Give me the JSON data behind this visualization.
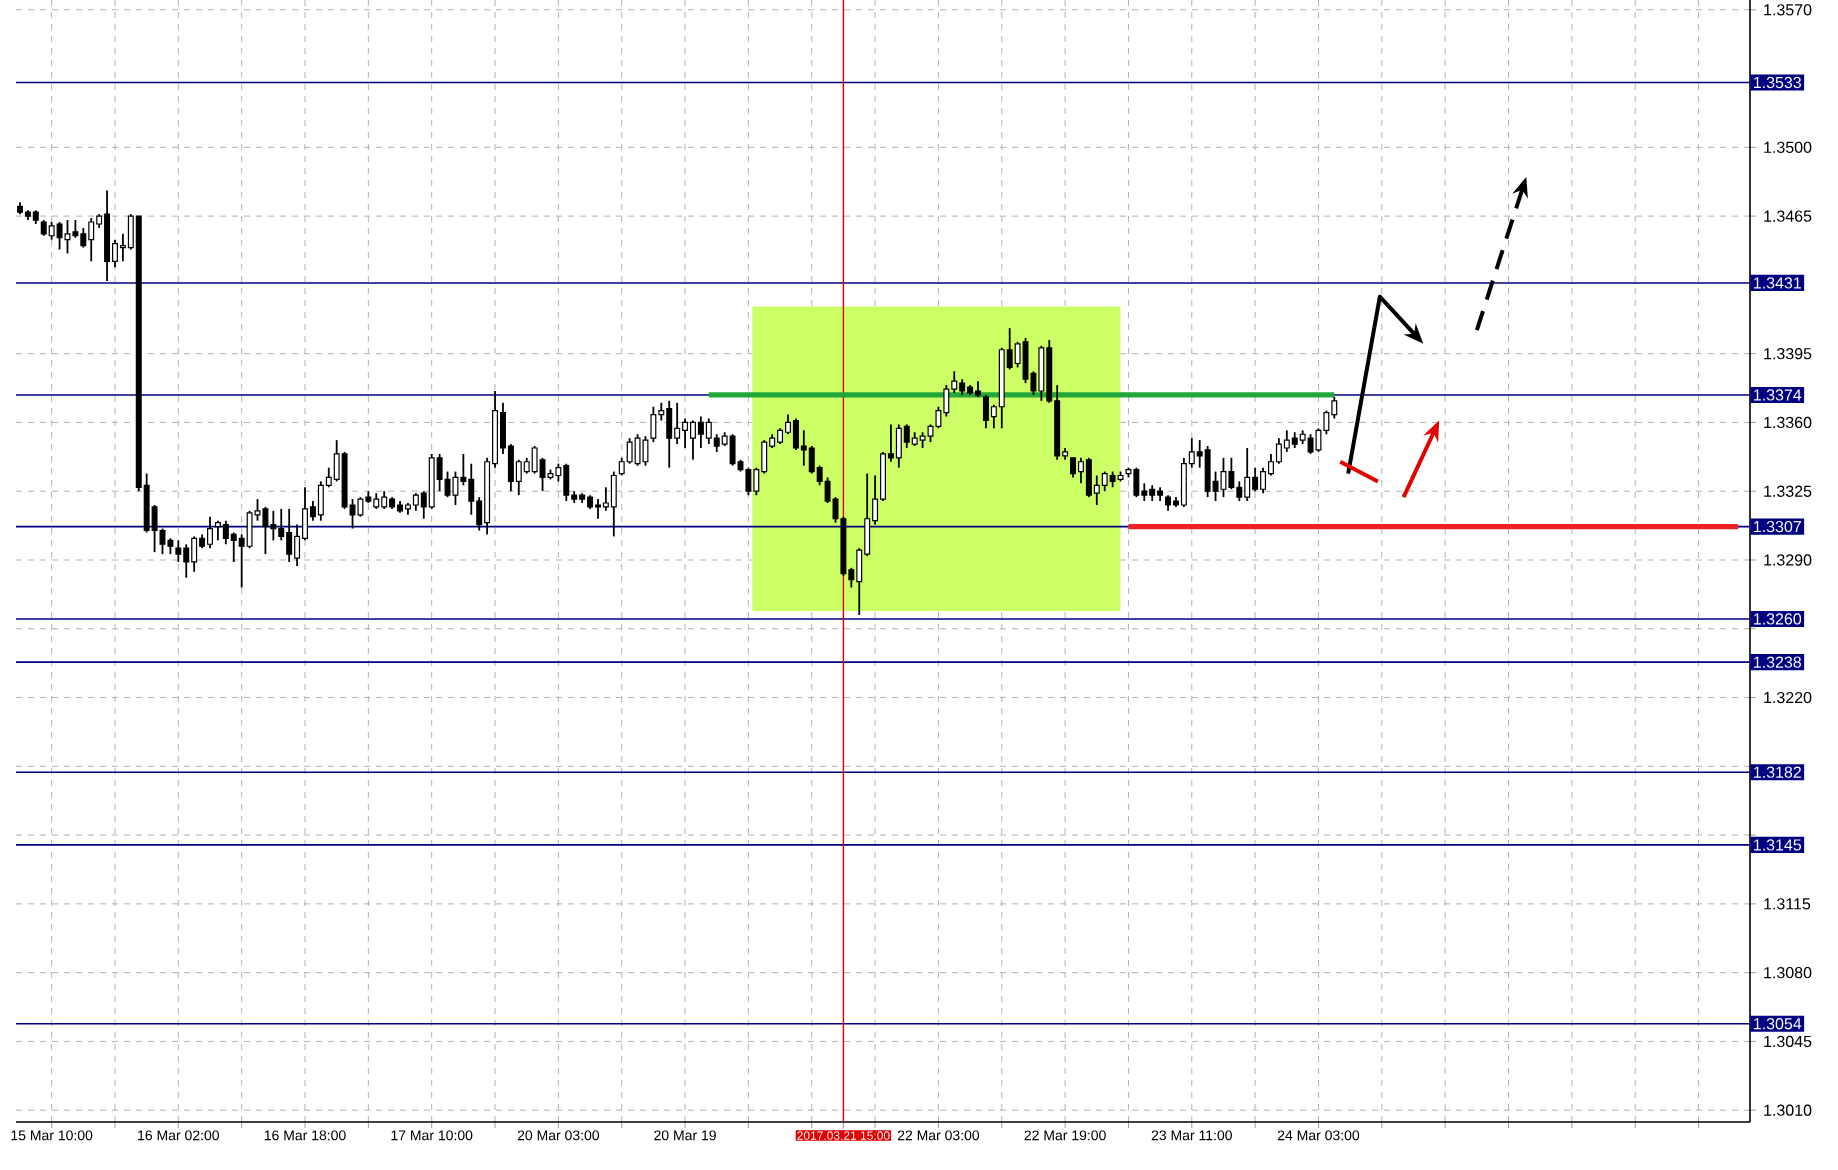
{
  "chart_data": {
    "type": "candlestick",
    "categories": [
      null,
      null,
      null,
      null,
      "15 Mar 10:00",
      null,
      null,
      null,
      null,
      null,
      null,
      null,
      null,
      null,
      null,
      null,
      null,
      null,
      null,
      null,
      "16 Mar 02:00",
      null,
      null,
      null,
      null,
      null,
      null,
      null,
      null,
      null,
      null,
      null,
      null,
      null,
      null,
      null,
      "16 Mar 18:00",
      null,
      null,
      null,
      null,
      null,
      null,
      null,
      null,
      null,
      null,
      null,
      null,
      null,
      null,
      null,
      "17 Mar 10:00",
      null,
      null,
      null,
      null,
      null,
      null,
      null,
      null,
      null,
      null,
      null,
      null,
      null,
      null,
      null,
      "20 Mar 03:00",
      null,
      null,
      null,
      null,
      null,
      null,
      null,
      null,
      null,
      null,
      null,
      null,
      null,
      null,
      null,
      "20 Mar 19",
      null,
      null,
      null,
      null,
      null,
      null,
      null,
      null,
      null,
      null,
      null,
      null,
      null,
      null,
      null,
      null,
      null,
      null,
      null,
      "2017.03.21 15:00",
      null,
      null,
      null,
      null,
      null,
      null,
      null,
      null,
      null,
      null,
      null,
      "22 Mar 03:00",
      null,
      null,
      null,
      null,
      null,
      null,
      null,
      null,
      null,
      null,
      null,
      null,
      null,
      null,
      null,
      "22 Mar 19:00",
      null,
      null,
      null,
      null,
      null,
      null,
      null,
      null,
      null,
      null,
      null,
      null,
      null,
      null,
      null,
      "23 Mar 11:00",
      null,
      null,
      null,
      null,
      null,
      null,
      null,
      null,
      null,
      null,
      null,
      null,
      null,
      null,
      null,
      "24 Mar 03:00",
      null,
      null,
      null,
      null,
      null,
      null,
      null,
      null,
      null,
      null,
      null,
      null,
      null,
      null,
      null,
      null,
      null,
      null,
      null,
      null,
      null,
      null,
      null,
      null,
      null,
      null,
      null,
      null,
      null,
      null,
      null,
      null,
      null,
      null,
      null,
      null,
      null,
      null,
      null,
      null,
      null,
      null,
      null,
      null,
      null,
      null,
      null,
      null,
      null,
      null,
      null,
      null,
      null,
      null
    ],
    "ohlc": [
      [
        1.347,
        1.3472,
        1.3466,
        1.3467
      ],
      [
        1.3467,
        1.3468,
        1.3463,
        1.3465
      ],
      [
        1.3467,
        1.3468,
        1.3461,
        1.3463
      ],
      [
        1.3462,
        1.3463,
        1.3455,
        1.3456
      ],
      [
        1.3455,
        1.3462,
        1.3453,
        1.346
      ],
      [
        1.3461,
        1.3462,
        1.3448,
        1.3454
      ],
      [
        1.3453,
        1.3463,
        1.3446,
        1.3456
      ],
      [
        1.3457,
        1.3463,
        1.3454,
        1.3455
      ],
      [
        1.3456,
        1.3459,
        1.3449,
        1.345
      ],
      [
        1.3453,
        1.3464,
        1.3442,
        1.3462
      ],
      [
        1.3461,
        1.3466,
        1.3459,
        1.3465
      ],
      [
        1.3466,
        1.3478,
        1.3432,
        1.3442
      ],
      [
        1.3442,
        1.3453,
        1.3439,
        1.3451
      ],
      [
        1.3449,
        1.3456,
        1.3442,
        1.345
      ],
      [
        1.3449,
        1.3466,
        1.3448,
        1.3465
      ],
      [
        1.3465,
        1.3465,
        1.3325,
        1.3327
      ],
      [
        1.3328,
        1.3334,
        1.3304,
        1.3305
      ],
      [
        1.3317,
        1.3318,
        1.3294,
        1.3305
      ],
      [
        1.3305,
        1.3306,
        1.3293,
        1.3298
      ],
      [
        1.33,
        1.3301,
        1.3293,
        1.3297
      ],
      [
        1.3296,
        1.33,
        1.3289,
        1.3293
      ],
      [
        1.3296,
        1.3298,
        1.3281,
        1.3289
      ],
      [
        1.3289,
        1.3302,
        1.3284,
        1.3301
      ],
      [
        1.3301,
        1.3303,
        1.3296,
        1.3297
      ],
      [
        1.3298,
        1.3312,
        1.3296,
        1.3306
      ],
      [
        1.3307,
        1.331,
        1.33,
        1.3309
      ],
      [
        1.3308,
        1.331,
        1.3298,
        1.3301
      ],
      [
        1.3303,
        1.3304,
        1.3289,
        1.33
      ],
      [
        1.3301,
        1.3303,
        1.3276,
        1.3297
      ],
      [
        1.3297,
        1.3315,
        1.3296,
        1.3314
      ],
      [
        1.3313,
        1.3321,
        1.331,
        1.3315
      ],
      [
        1.3316,
        1.3317,
        1.3293,
        1.3307
      ],
      [
        1.3308,
        1.3315,
        1.33,
        1.3306
      ],
      [
        1.3306,
        1.3316,
        1.33,
        1.3302
      ],
      [
        1.3304,
        1.3316,
        1.3289,
        1.3293
      ],
      [
        1.3291,
        1.3308,
        1.3287,
        1.3302
      ],
      [
        1.3301,
        1.3327,
        1.33,
        1.3316
      ],
      [
        1.3317,
        1.332,
        1.331,
        1.3312
      ],
      [
        1.3313,
        1.333,
        1.331,
        1.3328
      ],
      [
        1.3328,
        1.3337,
        1.3327,
        1.3332
      ],
      [
        1.3331,
        1.3351,
        1.333,
        1.3344
      ],
      [
        1.3344,
        1.3345,
        1.3316,
        1.3317
      ],
      [
        1.3318,
        1.3321,
        1.3306,
        1.3313
      ],
      [
        1.3313,
        1.3322,
        1.3312,
        1.3321
      ],
      [
        1.3322,
        1.3325,
        1.3319,
        1.332
      ],
      [
        1.3317,
        1.3324,
        1.3316,
        1.3321
      ],
      [
        1.3317,
        1.3325,
        1.3316,
        1.3322
      ],
      [
        1.3321,
        1.3322,
        1.3316,
        1.3317
      ],
      [
        1.3318,
        1.332,
        1.3314,
        1.3315
      ],
      [
        1.3316,
        1.3319,
        1.3313,
        1.3318
      ],
      [
        1.3318,
        1.3324,
        1.3315,
        1.3323
      ],
      [
        1.3324,
        1.3325,
        1.3311,
        1.3317
      ],
      [
        1.3317,
        1.3344,
        1.3316,
        1.3342
      ],
      [
        1.3342,
        1.3344,
        1.3325,
        1.3331
      ],
      [
        1.3331,
        1.3335,
        1.3322,
        1.3323
      ],
      [
        1.3323,
        1.3335,
        1.3318,
        1.3332
      ],
      [
        1.3332,
        1.3344,
        1.3328,
        1.333
      ],
      [
        1.3331,
        1.3339,
        1.3313,
        1.332
      ],
      [
        1.332,
        1.3322,
        1.3305,
        1.3308
      ],
      [
        1.3309,
        1.3342,
        1.3303,
        1.334
      ],
      [
        1.3339,
        1.3376,
        1.3337,
        1.3366
      ],
      [
        1.3365,
        1.337,
        1.3344,
        1.3347
      ],
      [
        1.3348,
        1.3349,
        1.3325,
        1.333
      ],
      [
        1.333,
        1.3341,
        1.3323,
        1.334
      ],
      [
        1.3335,
        1.3342,
        1.3334,
        1.334
      ],
      [
        1.3335,
        1.3348,
        1.3334,
        1.3347
      ],
      [
        1.3341,
        1.3342,
        1.3325,
        1.3332
      ],
      [
        1.3332,
        1.3336,
        1.3331,
        1.3334
      ],
      [
        1.3333,
        1.3339,
        1.333,
        1.3337
      ],
      [
        1.3338,
        1.3339,
        1.332,
        1.3323
      ],
      [
        1.3323,
        1.3325,
        1.3319,
        1.3321
      ],
      [
        1.3323,
        1.3324,
        1.3319,
        1.3321
      ],
      [
        1.3322,
        1.3323,
        1.3316,
        1.3317
      ],
      [
        1.3318,
        1.3321,
        1.3311,
        1.3317
      ],
      [
        1.3317,
        1.3327,
        1.3315,
        1.3319
      ],
      [
        1.3317,
        1.3335,
        1.3302,
        1.3333
      ],
      [
        1.3334,
        1.3342,
        1.3333,
        1.334
      ],
      [
        1.334,
        1.3352,
        1.3339,
        1.335
      ],
      [
        1.3339,
        1.3354,
        1.3338,
        1.3352
      ],
      [
        1.334,
        1.3353,
        1.3338,
        1.3351
      ],
      [
        1.3352,
        1.3368,
        1.335,
        1.3364
      ],
      [
        1.3364,
        1.337,
        1.3361,
        1.3366
      ],
      [
        1.3367,
        1.3371,
        1.3337,
        1.3352
      ],
      [
        1.3352,
        1.337,
        1.3349,
        1.3357
      ],
      [
        1.3356,
        1.3362,
        1.3347,
        1.336
      ],
      [
        1.3352,
        1.3361,
        1.3341,
        1.336
      ],
      [
        1.336,
        1.3363,
        1.3347,
        1.3354
      ],
      [
        1.3352,
        1.3362,
        1.3349,
        1.336
      ],
      [
        1.3352,
        1.3354,
        1.3345,
        1.3348
      ],
      [
        1.3349,
        1.3355,
        1.3348,
        1.3353
      ],
      [
        1.3353,
        1.3354,
        1.3338,
        1.3339
      ],
      [
        1.334,
        1.3341,
        1.3335,
        1.3336
      ],
      [
        1.3336,
        1.3337,
        1.3323,
        1.3325
      ],
      [
        1.3325,
        1.3337,
        1.3323,
        1.3336
      ],
      [
        1.3335,
        1.3351,
        1.3334,
        1.335
      ],
      [
        1.3348,
        1.3354,
        1.3347,
        1.3352
      ],
      [
        1.335,
        1.3357,
        1.3349,
        1.3356
      ],
      [
        1.3355,
        1.3364,
        1.3354,
        1.336
      ],
      [
        1.3361,
        1.3362,
        1.3346,
        1.3347
      ],
      [
        1.3348,
        1.3356,
        1.3338,
        1.3346
      ],
      [
        1.3347,
        1.3348,
        1.3334,
        1.3335
      ],
      [
        1.3337,
        1.3338,
        1.3328,
        1.333
      ],
      [
        1.333,
        1.3332,
        1.3319,
        1.332
      ],
      [
        1.3321,
        1.3322,
        1.3309,
        1.3311
      ],
      [
        1.3311,
        1.3312,
        1.3282,
        1.3283
      ],
      [
        1.3285,
        1.3286,
        1.3276,
        1.328
      ],
      [
        1.3279,
        1.3296,
        1.3262,
        1.3295
      ],
      [
        1.3293,
        1.3334,
        1.3292,
        1.3311
      ],
      [
        1.331,
        1.3333,
        1.3308,
        1.3321
      ],
      [
        1.3321,
        1.3345,
        1.332,
        1.3344
      ],
      [
        1.3344,
        1.3359,
        1.334,
        1.3342
      ],
      [
        1.3342,
        1.3359,
        1.3337,
        1.3357
      ],
      [
        1.3358,
        1.3359,
        1.3347,
        1.335
      ],
      [
        1.3349,
        1.3355,
        1.3348,
        1.3352
      ],
      [
        1.3351,
        1.3355,
        1.3347,
        1.3353
      ],
      [
        1.3353,
        1.3359,
        1.335,
        1.3358
      ],
      [
        1.3358,
        1.3368,
        1.3357,
        1.3366
      ],
      [
        1.3365,
        1.3379,
        1.3363,
        1.3377
      ],
      [
        1.3377,
        1.3386,
        1.3375,
        1.3381
      ],
      [
        1.338,
        1.3382,
        1.3374,
        1.3376
      ],
      [
        1.3378,
        1.3379,
        1.3374,
        1.3375
      ],
      [
        1.3376,
        1.3381,
        1.3373,
        1.3374
      ],
      [
        1.3373,
        1.3374,
        1.3357,
        1.3361
      ],
      [
        1.3363,
        1.3369,
        1.3357,
        1.3368
      ],
      [
        1.3368,
        1.3398,
        1.3357,
        1.3397
      ],
      [
        1.3397,
        1.3408,
        1.3387,
        1.3388
      ],
      [
        1.339,
        1.3401,
        1.3388,
        1.34
      ],
      [
        1.3401,
        1.3403,
        1.338,
        1.3382
      ],
      [
        1.3385,
        1.3386,
        1.3374,
        1.3376
      ],
      [
        1.3376,
        1.3399,
        1.3371,
        1.3398
      ],
      [
        1.3398,
        1.3402,
        1.337,
        1.3371
      ],
      [
        1.3371,
        1.3379,
        1.3341,
        1.3343
      ],
      [
        1.3343,
        1.3347,
        1.3341,
        1.3345
      ],
      [
        1.3342,
        1.3342,
        1.3332,
        1.3334
      ],
      [
        1.3335,
        1.3342,
        1.3329,
        1.334
      ],
      [
        1.3341,
        1.3342,
        1.3322,
        1.3323
      ],
      [
        1.3324,
        1.3333,
        1.3318,
        1.3328
      ],
      [
        1.3328,
        1.3335,
        1.3325,
        1.3334
      ],
      [
        1.3333,
        1.3335,
        1.3327,
        1.333
      ],
      [
        1.3331,
        1.3335,
        1.333,
        1.3333
      ],
      [
        1.3334,
        1.3337,
        1.3332,
        1.3336
      ],
      [
        1.3336,
        1.3337,
        1.3322,
        1.3323
      ],
      [
        1.3325,
        1.3329,
        1.332,
        1.3323
      ],
      [
        1.3326,
        1.3328,
        1.332,
        1.3323
      ],
      [
        1.3325,
        1.3327,
        1.332,
        1.3323
      ],
      [
        1.3322,
        1.3323,
        1.3315,
        1.3318
      ],
      [
        1.332,
        1.3322,
        1.3317,
        1.3318
      ],
      [
        1.3318,
        1.3342,
        1.3317,
        1.3339
      ],
      [
        1.3339,
        1.3352,
        1.3337,
        1.3345
      ],
      [
        1.3345,
        1.3351,
        1.3337,
        1.3343
      ],
      [
        1.3346,
        1.3348,
        1.3322,
        1.3325
      ],
      [
        1.333,
        1.3335,
        1.332,
        1.3325
      ],
      [
        1.3326,
        1.3342,
        1.3322,
        1.3335
      ],
      [
        1.3335,
        1.3342,
        1.3326,
        1.3327
      ],
      [
        1.3327,
        1.333,
        1.332,
        1.3322
      ],
      [
        1.3322,
        1.3347,
        1.332,
        1.3332
      ],
      [
        1.3332,
        1.3337,
        1.3325,
        1.3326
      ],
      [
        1.3326,
        1.3337,
        1.3324,
        1.3335
      ],
      [
        1.3334,
        1.3344,
        1.3333,
        1.334
      ],
      [
        1.334,
        1.3352,
        1.3339,
        1.3349
      ],
      [
        1.3347,
        1.3356,
        1.3345,
        1.3351
      ],
      [
        1.3352,
        1.3355,
        1.3347,
        1.3349
      ],
      [
        1.3351,
        1.3356,
        1.3349,
        1.3354
      ],
      [
        1.3352,
        1.3354,
        1.3344,
        1.3345
      ],
      [
        1.3346,
        1.3357,
        1.3345,
        1.3356
      ],
      [
        1.3356,
        1.3366,
        1.3354,
        1.3365
      ],
      [
        1.3364,
        1.3373,
        1.3362,
        1.3371
      ],
      null,
      null,
      null,
      null,
      null,
      null,
      null,
      null,
      null,
      null,
      null,
      null,
      null,
      null,
      null,
      null,
      null,
      null,
      null,
      null,
      null,
      null,
      null,
      null,
      null,
      null,
      null,
      null,
      null,
      null,
      null,
      null,
      null,
      null,
      null,
      null,
      null,
      null,
      null,
      null,
      null,
      null,
      null,
      null,
      null,
      null,
      null,
      null,
      null,
      null,
      null,
      null
    ],
    "ylim": [
      1.3004,
      1.3575
    ],
    "yticks": [
      {
        "value": 1.301,
        "label": "1.3010"
      },
      {
        "value": 1.3045,
        "label": "1.3045"
      },
      {
        "value": 1.308,
        "label": "1.3080"
      },
      {
        "value": 1.3115,
        "label": "1.3115"
      },
      {
        "value": 1.315,
        "label": null
      },
      {
        "value": 1.3185,
        "label": null
      },
      {
        "value": 1.322,
        "label": "1.3220"
      },
      {
        "value": 1.3255,
        "label": null
      },
      {
        "value": 1.329,
        "label": "1.3290"
      },
      {
        "value": 1.3325,
        "label": "1.3325"
      },
      {
        "value": 1.336,
        "label": "1.3360"
      },
      {
        "value": 1.3395,
        "label": "1.3395"
      },
      {
        "value": 1.3465,
        "label": "1.3465"
      },
      {
        "value": 1.35,
        "label": "1.3500"
      },
      {
        "value": 1.357,
        "label": "1.3570"
      }
    ],
    "grid": true,
    "bands": [
      {
        "axis": "y",
        "from": 1.3264,
        "to": 1.3419,
        "color": "#ccff66"
      }
    ],
    "ref_lines": [
      {
        "axis": "y",
        "value": 1.3533,
        "label": "1.3533",
        "color": "#000080"
      },
      {
        "axis": "y",
        "value": 1.3431,
        "label": "1.3431",
        "color": "#000080"
      },
      {
        "axis": "y",
        "value": 1.3374,
        "label": "1.3374",
        "color": "#000080"
      },
      {
        "axis": "y",
        "value": 1.3307,
        "label": "1.3307",
        "color": "#000080"
      },
      {
        "axis": "y",
        "value": 1.326,
        "label": "1.3260",
        "color": "#000080"
      },
      {
        "axis": "y",
        "value": 1.3238,
        "label": "1.3238",
        "color": "#000080"
      },
      {
        "axis": "y",
        "value": 1.3182,
        "label": "1.3182",
        "color": "#000080"
      },
      {
        "axis": "y",
        "value": 1.3145,
        "label": "1.3145",
        "color": "#000080"
      },
      {
        "axis": "y",
        "value": 1.3054,
        "label": "1.3054",
        "color": "#000080"
      },
      {
        "axis": "x",
        "value": "2017.03.21 15:00",
        "color": "#e00000"
      }
    ],
    "series": [
      {
        "type": "line",
        "color": "#22a83a",
        "values": [
          null,
          null,
          null,
          null,
          null,
          null,
          null,
          null,
          null,
          null,
          null,
          null,
          null,
          null,
          null,
          null,
          null,
          null,
          null,
          null,
          null,
          null,
          null,
          null,
          null,
          null,
          null,
          null,
          null,
          null,
          null,
          null,
          null,
          null,
          null,
          null,
          null,
          null,
          null,
          null,
          null,
          null,
          null,
          null,
          null,
          null,
          null,
          null,
          null,
          null,
          null,
          null,
          null,
          null,
          null,
          null,
          null,
          null,
          null,
          null,
          null,
          null,
          null,
          null,
          null,
          null,
          null,
          null,
          null,
          null,
          null,
          null,
          null,
          null,
          null,
          null,
          null,
          null,
          null,
          null,
          null,
          null,
          null,
          null,
          null,
          null,
          null,
          1.3374,
          1.3374,
          1.3374,
          1.3374,
          1.3374,
          1.3374,
          1.3374,
          1.3374,
          1.3374,
          1.3374,
          1.3374,
          1.3374,
          1.3374,
          1.3374,
          1.3374,
          1.3374,
          1.3374,
          1.3374,
          1.3374,
          1.3374,
          1.3374,
          1.3374,
          1.3374,
          1.3374,
          1.3374,
          1.3374,
          1.3374,
          1.3374,
          1.3374,
          1.3374,
          1.3374,
          1.3374,
          1.3374,
          1.3374,
          1.3374,
          1.3374,
          1.3374,
          1.3374,
          1.3374,
          1.3374,
          1.3374,
          1.3374,
          1.3374,
          1.3374,
          1.3374,
          1.3374,
          1.3374,
          1.3374,
          1.3374,
          1.3374,
          1.3374,
          1.3374,
          1.3374,
          1.3374,
          1.3374,
          1.3374,
          1.3374,
          1.3374,
          1.3374,
          1.3374,
          1.3374,
          1.3374,
          1.3374,
          1.3374,
          1.3374,
          1.3374,
          1.3374,
          1.3374,
          1.3374,
          1.3374,
          1.3374,
          1.3374,
          1.3374,
          1.3374,
          1.3374,
          1.3374,
          1.3374,
          1.3374,
          1.3374,
          1.3374,
          null,
          null,
          null,
          null,
          null,
          null,
          null,
          null,
          null,
          null,
          null,
          null,
          null,
          null,
          null,
          null,
          null,
          null,
          null,
          null,
          null,
          null,
          null,
          null,
          null,
          null,
          null,
          null,
          null,
          null,
          null,
          null,
          null,
          null,
          null,
          null,
          null,
          null,
          null,
          null,
          null,
          null,
          null,
          null,
          null,
          null,
          null,
          null,
          null,
          null,
          null,
          null
        ]
      },
      {
        "type": "line",
        "color": "#ee2222",
        "values": [
          null,
          null,
          null,
          null,
          null,
          null,
          null,
          null,
          null,
          null,
          null,
          null,
          null,
          null,
          null,
          null,
          null,
          null,
          null,
          null,
          null,
          null,
          null,
          null,
          null,
          null,
          null,
          null,
          null,
          null,
          null,
          null,
          null,
          null,
          null,
          null,
          null,
          null,
          null,
          null,
          null,
          null,
          null,
          null,
          null,
          null,
          null,
          null,
          null,
          null,
          null,
          null,
          null,
          null,
          null,
          null,
          null,
          null,
          null,
          null,
          null,
          null,
          null,
          null,
          null,
          null,
          null,
          null,
          null,
          null,
          null,
          null,
          null,
          null,
          null,
          null,
          null,
          null,
          null,
          null,
          null,
          null,
          null,
          null,
          null,
          null,
          null,
          null,
          null,
          null,
          null,
          null,
          null,
          null,
          null,
          null,
          null,
          null,
          null,
          null,
          null,
          null,
          null,
          null,
          null,
          null,
          null,
          null,
          null,
          null,
          null,
          null,
          null,
          null,
          null,
          null,
          null,
          null,
          null,
          null,
          null,
          null,
          null,
          null,
          null,
          null,
          null,
          null,
          null,
          null,
          null,
          null,
          null,
          null,
          null,
          null,
          null,
          null,
          null,
          null,
          1.3307,
          1.3307,
          1.3307,
          1.3307,
          1.3307,
          1.3307,
          1.3307,
          1.3307,
          1.3307,
          1.3307,
          1.3307,
          1.3307,
          1.3307,
          1.3307,
          1.3307,
          1.3307,
          1.3307,
          1.3307,
          1.3307,
          1.3307,
          1.3307,
          1.3307,
          1.3307,
          1.3307,
          1.3307,
          1.3307,
          1.3307,
          1.3307,
          1.3307,
          1.3307,
          1.3307,
          1.3307,
          1.3307,
          1.3307,
          1.3307,
          1.3307,
          1.3307,
          1.3307,
          1.3307,
          1.3307,
          1.3307,
          1.3307,
          1.3307,
          1.3307,
          1.3307,
          1.3307,
          1.3307,
          1.3307,
          1.3307,
          1.3307,
          1.3307,
          1.3307,
          1.3307,
          1.3307,
          1.3307,
          1.3307,
          1.3307,
          1.3307,
          1.3307,
          1.3307,
          1.3307,
          1.3307,
          1.3307,
          1.3307,
          1.3307,
          1.3307,
          1.3307,
          1.3307,
          1.3307,
          1.3307,
          1.3307,
          1.3307,
          1.3307,
          1.3307,
          1.3307,
          1.3307,
          1.3307,
          1.3307,
          null
        ]
      }
    ]
  }
}
